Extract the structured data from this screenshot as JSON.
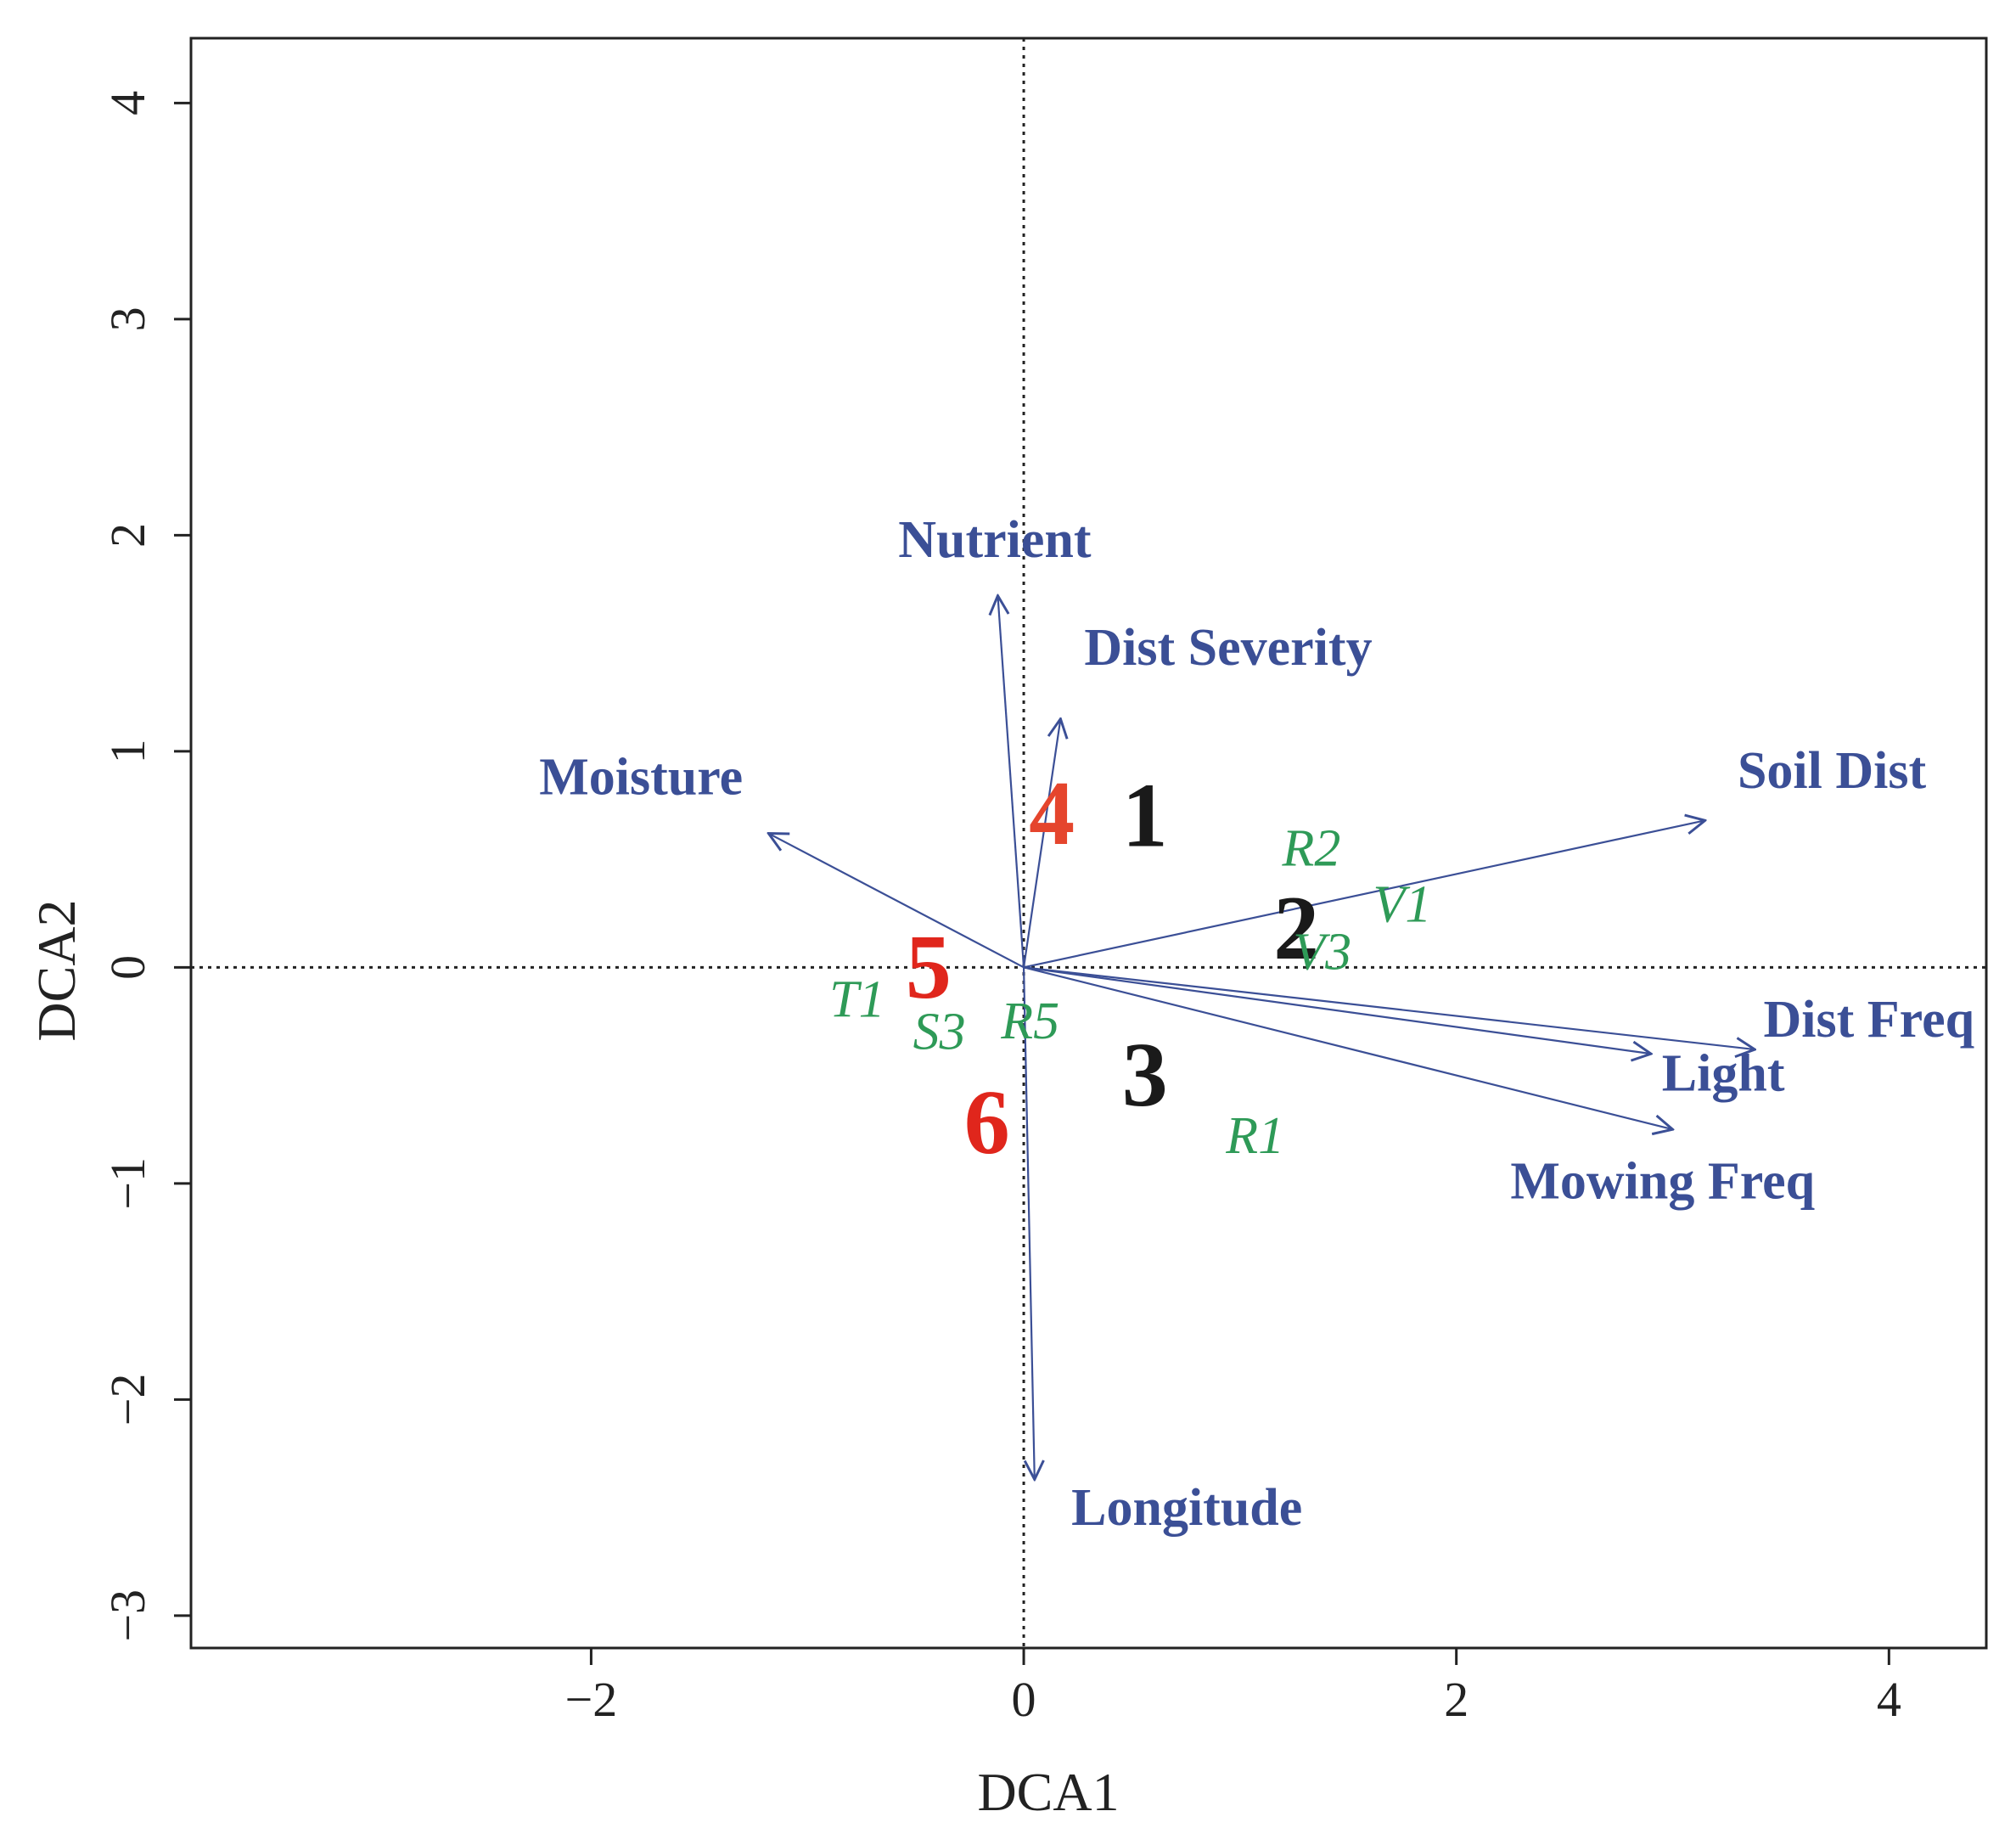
{
  "chart_data": {
    "type": "scatter",
    "subtype": "ordination-biplot",
    "xlabel": "DCA1",
    "ylabel": "DCA2",
    "xlim": [
      -3.85,
      4.45
    ],
    "ylim": [
      -3.15,
      4.3
    ],
    "xticks": [
      -2,
      0,
      2,
      4
    ],
    "yticks": [
      -3,
      -2,
      -1,
      0,
      1,
      2,
      3,
      4
    ],
    "reference_lines": {
      "x": 0,
      "y": 0,
      "style": "dotted"
    },
    "vectors": [
      {
        "name": "Nutrient",
        "x": -0.12,
        "y": 1.72,
        "label_x": -0.58,
        "label_y": 1.9
      },
      {
        "name": "Dist Severity",
        "x": 0.17,
        "y": 1.15,
        "label_x": 0.28,
        "label_y": 1.4
      },
      {
        "name": "Moisture",
        "x": -1.18,
        "y": 0.62,
        "label_x": -2.24,
        "label_y": 0.8
      },
      {
        "name": "Soil Dist",
        "x": 3.15,
        "y": 0.68,
        "label_x": 3.3,
        "label_y": 0.83
      },
      {
        "name": "Dist Freq",
        "x": 3.38,
        "y": -0.38,
        "label_x": 3.42,
        "label_y": -0.32
      },
      {
        "name": "Light",
        "x": 2.9,
        "y": -0.4,
        "label_x": 2.95,
        "label_y": -0.57
      },
      {
        "name": "Mowing Freq",
        "x": 3.0,
        "y": -0.75,
        "label_x": 2.25,
        "label_y": -1.07
      },
      {
        "name": "Longitude",
        "x": 0.05,
        "y": -2.37,
        "label_x": 0.22,
        "label_y": -2.58
      }
    ],
    "groups": [
      {
        "label": "1",
        "x": 0.56,
        "y": 0.7,
        "color": "#1a1a1a"
      },
      {
        "label": "2",
        "x": 1.26,
        "y": 0.18,
        "color": "#1a1a1a"
      },
      {
        "label": "3",
        "x": 0.56,
        "y": -0.5,
        "color": "#1a1a1a"
      },
      {
        "label": "4",
        "x": 0.13,
        "y": 0.71,
        "color": "#e5452d"
      },
      {
        "label": "5",
        "x": -0.44,
        "y": 0.0,
        "color": "#e0261c"
      },
      {
        "label": "6",
        "x": -0.17,
        "y": -0.72,
        "color": "#e0261c"
      }
    ],
    "sites": [
      {
        "label": "R2",
        "x": 1.33,
        "y": 0.55
      },
      {
        "label": "V1",
        "x": 1.75,
        "y": 0.29
      },
      {
        "label": "V3",
        "x": 1.38,
        "y": 0.07
      },
      {
        "label": "T1",
        "x": -0.77,
        "y": -0.15
      },
      {
        "label": "S3",
        "x": -0.39,
        "y": -0.3
      },
      {
        "label": "R5",
        "x": 0.03,
        "y": -0.25
      },
      {
        "label": "R1",
        "x": 1.07,
        "y": -0.78
      }
    ]
  },
  "colors": {
    "vector": "#3b4f96",
    "site": "#2e9a57",
    "group_dark": "#1a1a1a",
    "group_red": "#e0261c",
    "axis": "#222222"
  }
}
